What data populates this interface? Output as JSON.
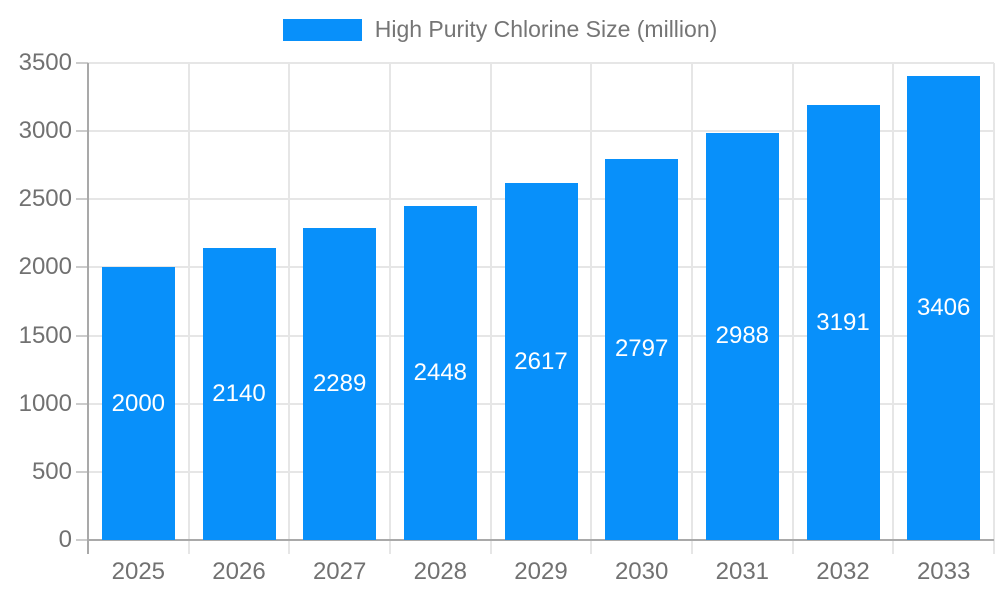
{
  "chart_data": {
    "type": "bar",
    "title": "High Purity Chlorine Size (million)",
    "series_name": "High Purity Chlorine Size (million)",
    "categories": [
      "2025",
      "2026",
      "2027",
      "2028",
      "2029",
      "2030",
      "2031",
      "2032",
      "2033"
    ],
    "values": [
      2000,
      2140,
      2289,
      2448,
      2617,
      2797,
      2988,
      3191,
      3406
    ],
    "value_labels": [
      "2000",
      "2140",
      "2289",
      "2448",
      "2617",
      "2797",
      "2988",
      "3191",
      "3406"
    ],
    "xlabel": "",
    "ylabel": "",
    "ylim": [
      0,
      3500
    ],
    "ytick_step": 500,
    "ytick_labels": [
      "0",
      "500",
      "1000",
      "1500",
      "2000",
      "2500",
      "3000",
      "3500"
    ],
    "grid": true,
    "legend_position": "top",
    "bar_color": "#0890fa",
    "value_label_color": "#ffffff",
    "axis_text_color": "#717171",
    "legend_text_color": "#757575",
    "gridline_color": "#e6e6e6",
    "axis_line_color": "#a9a9a9"
  }
}
